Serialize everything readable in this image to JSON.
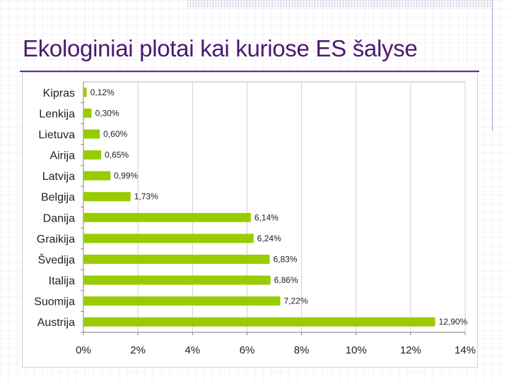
{
  "slide": {
    "title": "Ekologiniai plotai kai kuriose ES šalyse"
  },
  "colors": {
    "title": "#4b1a6e",
    "bar": "#99cc00",
    "rule": "#6a2c8a"
  },
  "chart_data": {
    "type": "bar",
    "orientation": "horizontal",
    "categories": [
      "Kipras",
      "Lenkija",
      "Lietuva",
      "Airija",
      "Latvija",
      "Belgija",
      "Danija",
      "Graikija",
      "Švedija",
      "Italija",
      "Suomija",
      "Austrija"
    ],
    "values": [
      0.12,
      0.3,
      0.6,
      0.65,
      0.99,
      1.73,
      6.14,
      6.24,
      6.83,
      6.86,
      7.22,
      12.9
    ],
    "value_labels": [
      "0,12%",
      "0,30%",
      "0,60%",
      "0,65%",
      "0,99%",
      "1,73%",
      "6,14%",
      "6,24%",
      "6,83%",
      "6,86%",
      "7,22%",
      "12,90%"
    ],
    "x_ticks": [
      0,
      2,
      4,
      6,
      8,
      10,
      12,
      14
    ],
    "x_tick_labels": [
      "0%",
      "2%",
      "4%",
      "6%",
      "8%",
      "10%",
      "12%",
      "14%"
    ],
    "xlim": [
      0,
      14
    ],
    "grid": true
  }
}
